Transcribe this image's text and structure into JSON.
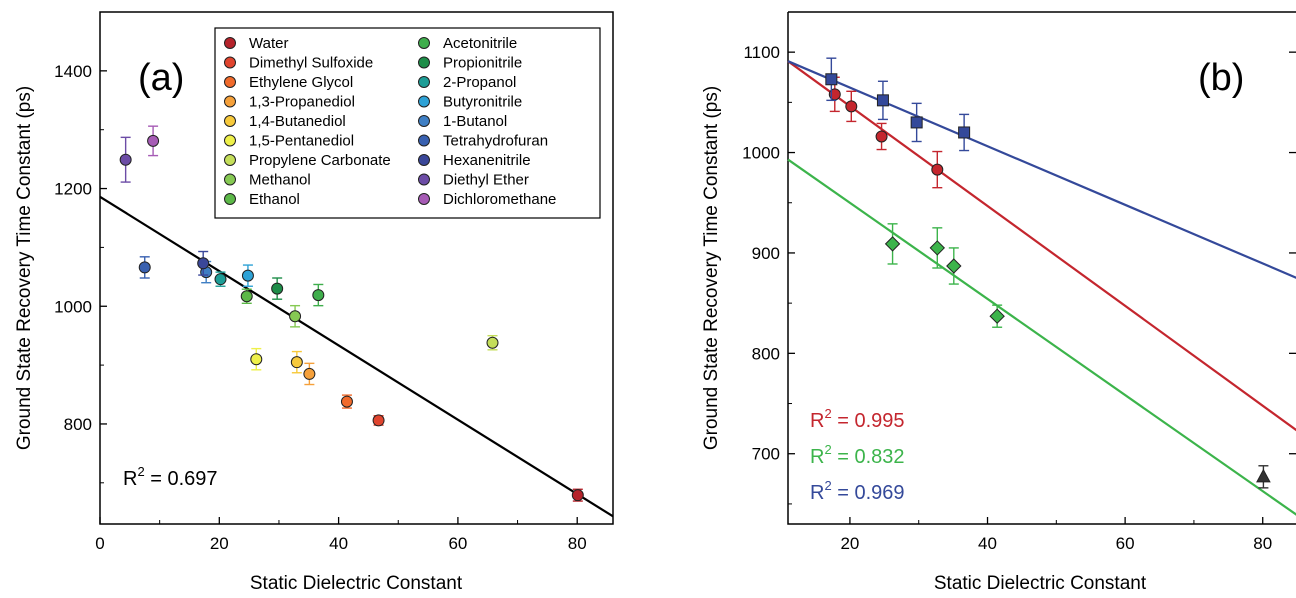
{
  "chart_data": [
    {
      "panel_label": "(a)",
      "type": "scatter",
      "xlabel": "Static Dielectric Constant",
      "ylabel": "Ground State Recovery Time Constant (ps)",
      "xlim": [
        0,
        86
      ],
      "ylim": [
        630,
        1500
      ],
      "xticks": [
        0,
        20,
        40,
        60,
        80
      ],
      "yticks": [
        800,
        1000,
        1200,
        1400
      ],
      "legend_position": "top-right",
      "series": [
        {
          "name": "Water",
          "color": "#b5232b",
          "x": 80.1,
          "y": 679,
          "err": 10
        },
        {
          "name": "Dimethyl Sulfoxide",
          "color": "#e0442e",
          "x": 46.7,
          "y": 806,
          "err": 8
        },
        {
          "name": "Ethylene Glycol",
          "color": "#f06a2b",
          "x": 41.4,
          "y": 838,
          "err": 11
        },
        {
          "name": "1,3-Propanediol",
          "color": "#f5a03a",
          "x": 35.1,
          "y": 885,
          "err": 18
        },
        {
          "name": "1,4-Butanediol",
          "color": "#f7c93b",
          "x": 33.0,
          "y": 905,
          "err": 18
        },
        {
          "name": "1,5-Pentanediol",
          "color": "#eef04a",
          "x": 26.2,
          "y": 910,
          "err": 18
        },
        {
          "name": "Propylene Carbonate",
          "color": "#c4de5a",
          "x": 65.8,
          "y": 938,
          "err": 12
        },
        {
          "name": "Methanol",
          "color": "#86c953",
          "x": 32.7,
          "y": 983,
          "err": 18
        },
        {
          "name": "Ethanol",
          "color": "#5cb848",
          "x": 24.6,
          "y": 1017,
          "err": 12
        },
        {
          "name": "Acetonitrile",
          "color": "#3fae4c",
          "x": 36.6,
          "y": 1019,
          "err": 18
        },
        {
          "name": "Propionitrile",
          "color": "#1d8d48",
          "x": 29.7,
          "y": 1030,
          "err": 18
        },
        {
          "name": "2-Propanol",
          "color": "#1d9d96",
          "x": 20.2,
          "y": 1046,
          "err": 12
        },
        {
          "name": "Butyronitrile",
          "color": "#2ea2d6",
          "x": 24.8,
          "y": 1052,
          "err": 18
        },
        {
          "name": "1-Butanol",
          "color": "#3f7fc4",
          "x": 17.8,
          "y": 1058,
          "err": 18
        },
        {
          "name": "Tetrahydrofuran",
          "color": "#3860b0",
          "x": 7.5,
          "y": 1066,
          "err": 18
        },
        {
          "name": "Hexanenitrile",
          "color": "#3a4799",
          "x": 17.3,
          "y": 1073,
          "err": 20
        },
        {
          "name": "Diethyl Ether",
          "color": "#6c4ca6",
          "x": 4.3,
          "y": 1249,
          "err": 38
        },
        {
          "name": "Dichloromethane",
          "color": "#a65bb5",
          "x": 8.9,
          "y": 1281,
          "err": 25
        }
      ],
      "fit_line": {
        "x": [
          0,
          86
        ],
        "y": [
          1186,
          643
        ],
        "color": "#000000"
      },
      "annotations": {
        "r2_prefix": "R",
        "r2_exp": "2",
        "r2_value": " = 0.697"
      }
    },
    {
      "panel_label": "(b)",
      "type": "scatter",
      "xlabel": "Static Dielectric Constant",
      "ylabel": "Ground State Recovery Time Constant (ps)",
      "xlim": [
        11,
        86
      ],
      "ylim": [
        630,
        1140
      ],
      "xticks": [
        20,
        40,
        60,
        80
      ],
      "yticks": [
        700,
        800,
        900,
        1000,
        1100
      ],
      "series": [
        {
          "name": "",
          "color": "#c4262e",
          "marker": "circle",
          "points": [
            {
              "x": 17.8,
              "y": 1058,
              "err": 17
            },
            {
              "x": 20.2,
              "y": 1046,
              "err": 15
            },
            {
              "x": 24.6,
              "y": 1016,
              "err": 13
            },
            {
              "x": 32.7,
              "y": 983,
              "err": 18
            }
          ],
          "fit_line": {
            "x": [
              11,
              86
            ],
            "y": [
              1091,
              718
            ]
          }
        },
        {
          "name": "",
          "color": "#3cb44b",
          "marker": "diamond",
          "points": [
            {
              "x": 26.2,
              "y": 909,
              "err": 20
            },
            {
              "x": 32.7,
              "y": 905,
              "err": 20
            },
            {
              "x": 35.1,
              "y": 887,
              "err": 18
            },
            {
              "x": 41.4,
              "y": 837,
              "err": 11
            }
          ],
          "fit_line": {
            "x": [
              11,
              86
            ],
            "y": [
              993,
              634
            ]
          }
        },
        {
          "name": "",
          "color": "#34499a",
          "marker": "square",
          "points": [
            {
              "x": 17.3,
              "y": 1073,
              "err": 21
            },
            {
              "x": 24.8,
              "y": 1052,
              "err": 19
            },
            {
              "x": 29.7,
              "y": 1030,
              "err": 19
            },
            {
              "x": 36.6,
              "y": 1020,
              "err": 18
            }
          ],
          "fit_line": {
            "x": [
              11,
              86
            ],
            "y": [
              1091,
              872
            ]
          }
        },
        {
          "name": "",
          "color": "#333333",
          "marker": "triangle",
          "points": [
            {
              "x": 80.1,
              "y": 677,
              "err": 11
            }
          ]
        }
      ],
      "annotations": [
        {
          "prefix": "R",
          "exp": "2",
          "value": " = 0.995",
          "color": "#c4262e"
        },
        {
          "prefix": "R",
          "exp": "2",
          "value": " = 0.832",
          "color": "#3cb44b"
        },
        {
          "prefix": "R",
          "exp": "2",
          "value": " = 0.969",
          "color": "#34499a"
        }
      ]
    }
  ]
}
